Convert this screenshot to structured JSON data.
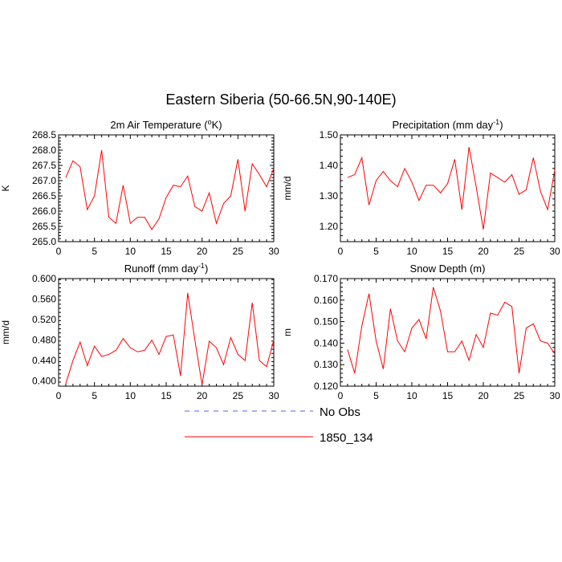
{
  "title": "Eastern Siberia (50-66.5N,90-140E)",
  "legend": [
    {
      "label": "No Obs",
      "color": "#5b5bf5",
      "dash": true
    },
    {
      "label": "1850_134",
      "color": "#ff0000",
      "dash": false
    }
  ],
  "chart_data": [
    {
      "type": "line",
      "title_main": "2m Air Temperature (",
      "title_sup": "o",
      "title_tail": "K)",
      "ylabel": "K",
      "xlim": [
        0,
        30
      ],
      "ylim": [
        265.0,
        268.5
      ],
      "xticks": [
        0,
        5,
        10,
        15,
        20,
        25,
        30
      ],
      "yticks": [
        265.0,
        265.5,
        266.0,
        266.5,
        267.0,
        267.5,
        268.0,
        268.5
      ],
      "ytick_labels": [
        "265.0",
        "265.5",
        "266.0",
        "266.5",
        "267.0",
        "267.5",
        "268.0",
        "268.5"
      ],
      "series": [
        {
          "name": "1850_134",
          "color": "#ff0000",
          "x": [
            1,
            2,
            3,
            4,
            5,
            6,
            7,
            8,
            9,
            10,
            11,
            12,
            13,
            14,
            15,
            16,
            17,
            18,
            19,
            20,
            21,
            22,
            23,
            24,
            25,
            26,
            27,
            28,
            29,
            30
          ],
          "values": [
            267.1,
            267.65,
            267.45,
            266.05,
            266.5,
            268.0,
            265.8,
            265.6,
            266.85,
            265.6,
            265.8,
            265.8,
            265.4,
            265.75,
            266.45,
            266.85,
            266.8,
            267.15,
            266.15,
            266.0,
            266.6,
            265.6,
            266.25,
            266.5,
            267.7,
            266.0,
            267.55,
            267.2,
            266.8,
            267.4
          ]
        }
      ]
    },
    {
      "type": "line",
      "title_main": "Precipitation (mm day",
      "title_sup": "-1",
      "title_tail": ")",
      "ylabel": "mm/d",
      "xlim": [
        0,
        30
      ],
      "ylim": [
        1.15,
        1.5
      ],
      "xticks": [
        0,
        5,
        10,
        15,
        20,
        25,
        30
      ],
      "yticks": [
        1.2,
        1.3,
        1.4,
        1.5
      ],
      "ytick_labels": [
        "1.20",
        "1.30",
        "1.40",
        "1.50"
      ],
      "series": [
        {
          "name": "1850_134",
          "color": "#ff0000",
          "x": [
            1,
            2,
            3,
            4,
            5,
            6,
            7,
            8,
            9,
            10,
            11,
            12,
            13,
            14,
            15,
            16,
            17,
            18,
            19,
            20,
            21,
            22,
            23,
            24,
            25,
            26,
            27,
            28,
            29,
            30
          ],
          "values": [
            1.36,
            1.37,
            1.425,
            1.27,
            1.35,
            1.38,
            1.35,
            1.33,
            1.39,
            1.345,
            1.285,
            1.335,
            1.335,
            1.31,
            1.34,
            1.42,
            1.255,
            1.46,
            1.33,
            1.19,
            1.375,
            1.36,
            1.345,
            1.37,
            1.305,
            1.32,
            1.425,
            1.315,
            1.255,
            1.385
          ]
        }
      ]
    },
    {
      "type": "line",
      "title_main": "Runoff (mm day",
      "title_sup": "-1",
      "title_tail": ")",
      "ylabel": "mm/d",
      "xlim": [
        0,
        30
      ],
      "ylim": [
        0.39,
        0.6
      ],
      "xticks": [
        0,
        5,
        10,
        15,
        20,
        25,
        30
      ],
      "yticks": [
        0.4,
        0.44,
        0.48,
        0.52,
        0.56,
        0.6
      ],
      "ytick_labels": [
        "0.400",
        "0.440",
        "0.480",
        "0.520",
        "0.560",
        "0.600"
      ],
      "series": [
        {
          "name": "1850_134",
          "color": "#ff0000",
          "x": [
            1,
            2,
            3,
            4,
            5,
            6,
            7,
            8,
            9,
            10,
            11,
            12,
            13,
            14,
            15,
            16,
            17,
            18,
            19,
            20,
            21,
            22,
            23,
            24,
            25,
            26,
            27,
            28,
            29,
            30
          ],
          "values": [
            0.395,
            0.44,
            0.476,
            0.43,
            0.468,
            0.448,
            0.452,
            0.46,
            0.483,
            0.465,
            0.457,
            0.46,
            0.48,
            0.452,
            0.487,
            0.49,
            0.41,
            0.572,
            0.48,
            0.393,
            0.478,
            0.465,
            0.432,
            0.485,
            0.452,
            0.44,
            0.553,
            0.44,
            0.428,
            0.48
          ]
        }
      ]
    },
    {
      "type": "line",
      "title_main": "Snow Depth (m)",
      "title_sup": "",
      "title_tail": "",
      "ylabel": "m",
      "xlim": [
        0,
        30
      ],
      "ylim": [
        0.12,
        0.17
      ],
      "xticks": [
        0,
        5,
        10,
        15,
        20,
        25,
        30
      ],
      "yticks": [
        0.12,
        0.13,
        0.14,
        0.15,
        0.16,
        0.17
      ],
      "ytick_labels": [
        "0.120",
        "0.130",
        "0.140",
        "0.150",
        "0.160",
        "0.170"
      ],
      "series": [
        {
          "name": "1850_134",
          "color": "#ff0000",
          "x": [
            1,
            2,
            3,
            4,
            5,
            6,
            7,
            8,
            9,
            10,
            11,
            12,
            13,
            14,
            15,
            16,
            17,
            18,
            19,
            20,
            21,
            22,
            23,
            24,
            25,
            26,
            27,
            28,
            29,
            30
          ],
          "values": [
            0.137,
            0.126,
            0.148,
            0.163,
            0.141,
            0.128,
            0.156,
            0.141,
            0.136,
            0.147,
            0.151,
            0.142,
            0.166,
            0.155,
            0.136,
            0.136,
            0.141,
            0.132,
            0.144,
            0.138,
            0.154,
            0.153,
            0.159,
            0.157,
            0.126,
            0.147,
            0.149,
            0.141,
            0.14,
            0.135
          ]
        }
      ]
    }
  ]
}
